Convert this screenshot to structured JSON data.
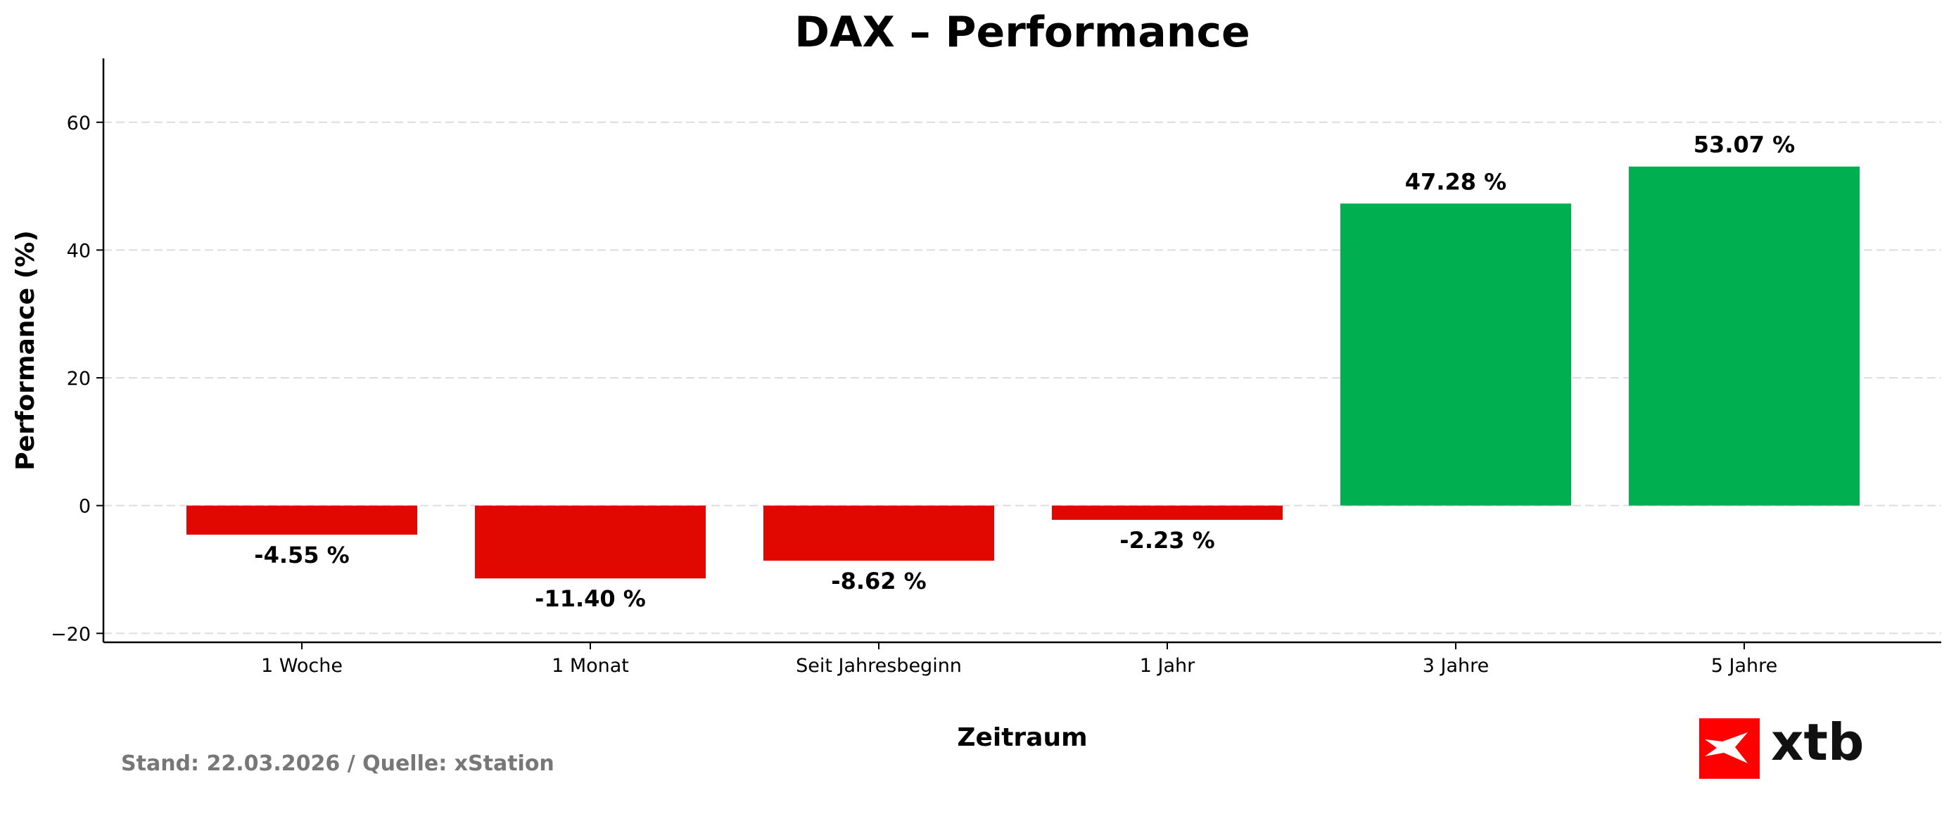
{
  "chart_data": {
    "type": "bar",
    "title": "DAX – Performance",
    "xlabel": "Zeitraum",
    "ylabel": "Performance (%)",
    "categories": [
      "1 Woche",
      "1 Monat",
      "Seit Jahresbeginn",
      "1 Jahr",
      "3 Jahre",
      "5 Jahre"
    ],
    "values": [
      -4.55,
      -11.4,
      -8.62,
      -2.23,
      47.28,
      53.07
    ],
    "data_labels": [
      "-4.55 %",
      "-11.40 %",
      "-8.62 %",
      "-2.23 %",
      "47.28 %",
      "53.07 %"
    ],
    "ylim": [
      -21.4,
      70
    ],
    "yticks": [
      -20,
      0,
      20,
      40,
      60
    ],
    "ytick_labels": [
      "−20",
      "0",
      "20",
      "40",
      "60"
    ],
    "grid": "horizontal dashed",
    "colors": {
      "negative": "#e00800",
      "positive": "#00b050"
    }
  },
  "footer": {
    "source": "Stand: 22.03.2026 / Quelle: xStation"
  },
  "logo": {
    "text": "xtb",
    "color": "#ff0000"
  }
}
